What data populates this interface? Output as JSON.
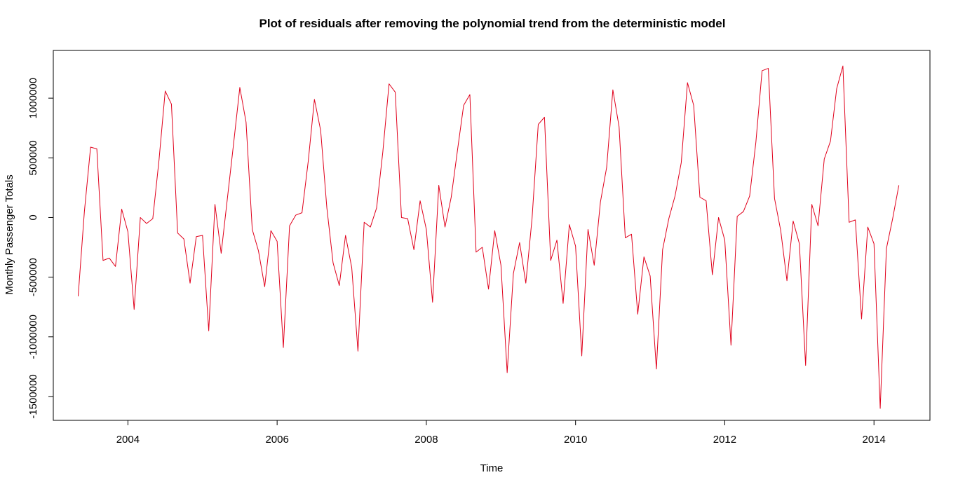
{
  "chart_data": {
    "type": "line",
    "title": "Plot of residuals after removing the polynomial trend from the deterministic model",
    "xlabel": "Time",
    "ylabel": "Monthly Passenger Totals",
    "xlim": [
      2003.0,
      2014.75
    ],
    "ylim": [
      -1700000,
      1400000
    ],
    "x_ticks": [
      2004,
      2006,
      2008,
      2010,
      2012,
      2014
    ],
    "x_tick_labels": [
      "2004",
      "2006",
      "2008",
      "2010",
      "2012",
      "2014"
    ],
    "y_ticks": [
      -1500000,
      -1000000,
      -500000,
      0,
      500000,
      1000000
    ],
    "y_tick_labels": [
      "-1500000",
      "-1000000",
      "-500000",
      "0",
      "500000",
      "1000000"
    ],
    "grid": false,
    "legend": "none",
    "series": [
      {
        "color": "#e0001b",
        "start": "2003-05",
        "frequency": "monthly",
        "values": [
          -660000,
          50000,
          590000,
          575000,
          -360000,
          -340000,
          -410000,
          70000,
          -120000,
          -770000,
          0,
          -50000,
          -10000,
          480000,
          1060000,
          950000,
          -130000,
          -180000,
          -550000,
          -160000,
          -150000,
          -950000,
          110000,
          -300000,
          160000,
          620000,
          1090000,
          800000,
          -100000,
          -280000,
          -580000,
          -110000,
          -200000,
          -1090000,
          -70000,
          20000,
          40000,
          470000,
          990000,
          730000,
          80000,
          -380000,
          -570000,
          -150000,
          -420000,
          -1120000,
          -40000,
          -80000,
          80000,
          550000,
          1120000,
          1050000,
          0,
          -10000,
          -270000,
          140000,
          -100000,
          -710000,
          270000,
          -80000,
          170000,
          560000,
          940000,
          1030000,
          -290000,
          -250000,
          -600000,
          -110000,
          -400000,
          -1300000,
          -470000,
          -210000,
          -550000,
          -10000,
          780000,
          840000,
          -360000,
          -190000,
          -720000,
          -60000,
          -240000,
          -1160000,
          -100000,
          -400000,
          130000,
          420000,
          1070000,
          760000,
          -170000,
          -140000,
          -810000,
          -330000,
          -490000,
          -1270000,
          -270000,
          -10000,
          180000,
          460000,
          1130000,
          940000,
          170000,
          140000,
          -480000,
          0,
          -190000,
          -1070000,
          10000,
          50000,
          180000,
          630000,
          1230000,
          1250000,
          160000,
          -110000,
          -530000,
          -30000,
          -220000,
          -1240000,
          110000,
          -70000,
          490000,
          640000,
          1080000,
          1270000,
          -40000,
          -20000,
          -850000,
          -80000,
          -220000,
          -1600000,
          -260000,
          -10000,
          270000
        ]
      }
    ]
  }
}
